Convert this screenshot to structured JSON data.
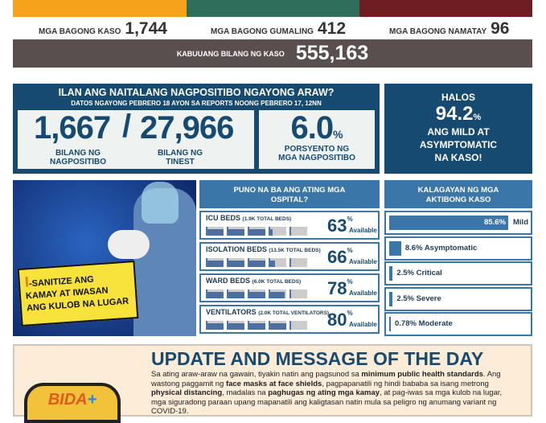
{
  "colors": {
    "orange": "#f6a31b",
    "green": "#2f6e5a",
    "maroon": "#6e1e22",
    "gray": "#5a4f4f",
    "navy": "#174a70",
    "blue": "#3a76a8"
  },
  "stats": {
    "new_cases_label": "MGA BAGONG KASO",
    "new_cases": "1,744",
    "recovered_label": "MGA BAGONG GUMALING",
    "recovered": "412",
    "deaths_label": "MGA BAGONG NAMATAY",
    "deaths": "96",
    "total_label": "KABUUANG BILANG NG KASO",
    "total": "555,163"
  },
  "positivity": {
    "title": "ILAN ANG NAITALANG NAGPOSITIBO NGAYONG ARAW?",
    "subtitle": "DATOS  NGAYONG  PEBRERO 18 AYON SA REPORTS NOONG  PEBRERO 17, 12NN",
    "positive": "1,667",
    "slash": "/",
    "tested": "27,966",
    "positive_label": "BILANG NG NAGPOSITIBO",
    "tested_label": "BILANG NG TINEST",
    "rate": "6.0",
    "rate_unit": "%",
    "rate_label": "PORSYENTO NG MGA NAGPOSITIBO"
  },
  "mild": {
    "line1": "HALOS",
    "value": "94.2",
    "unit": "%",
    "line2": "ANG MILD AT ASYMPTOMATIC NA KASO!"
  },
  "poster": {
    "text1": "I",
    "text2": "-SANITIZE ANG",
    "text3": "KAMAY AT IWASAN",
    "text4": "ANG KULOB NA LUGAR"
  },
  "hospitals": {
    "title": "PUNO NA BA ANG ATING MGA OSPITAL?",
    "available_label": "Available",
    "rows": [
      {
        "name": "ICU BEDS",
        "total": "(1.9K TOTAL BEDS)",
        "pct": "63",
        "fill": 63
      },
      {
        "name": "ISOLATION BEDS",
        "total": "(13.5K TOTAL BEDS)",
        "pct": "66",
        "fill": 66
      },
      {
        "name": "WARD BEDS",
        "total": "(6.0K TOTAL BEDS)",
        "pct": "78",
        "fill": 78
      },
      {
        "name": "VENTILATORS",
        "total": "(2.0K TOTAL VENTILATORS)",
        "pct": "80",
        "fill": 80
      }
    ]
  },
  "active": {
    "title": "KALAGAYAN NG MGA AKTIBONG KASO",
    "rows": [
      {
        "pct": "85.6%",
        "label": "Mild",
        "value": 85.6
      },
      {
        "pct": "8.6%",
        "label": "Asymptomatic",
        "value": 8.6
      },
      {
        "pct": "2.5%",
        "label": "Critical",
        "value": 2.5
      },
      {
        "pct": "2.5%",
        "label": "Severe",
        "value": 2.5
      },
      {
        "pct": "0.78%",
        "label": "Moderate",
        "value": 0.78
      }
    ]
  },
  "message": {
    "title": "UPDATE AND MESSAGE OF THE DAY",
    "logo": "BIDA",
    "p1": "Sa ating araw-araw na gawain, tiyakin natin ang pagsunod sa ",
    "b1": "minimum public health standards",
    "p2": ". Ang wastong paggamit ng ",
    "b2": "face masks at face shields",
    "p3": ", pagpapanatili ng hindi bababa sa isang metrong ",
    "b3": "physical distancing",
    "p4": ", madalas na ",
    "b4": "paghugas ng ating mga kamay",
    "p5": ", at pag-iwas sa mga kulob na lugar, mga siguradong paraan upang mapanatili ang kaligtasan natin mula sa peligro ng anumang variant ng COVID-19."
  }
}
